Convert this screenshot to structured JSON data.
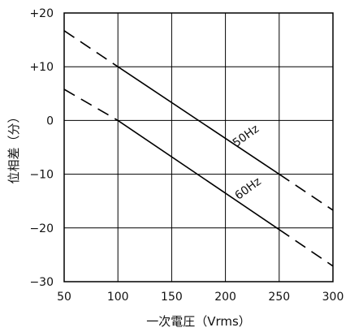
{
  "chart_data": {
    "type": "line",
    "xlabel": "一次電圧（Vrms）",
    "ylabel": "位相差（分）",
    "xlim": [
      50,
      300
    ],
    "ylim": [
      -30,
      20
    ],
    "x_ticks": [
      50,
      100,
      150,
      200,
      250,
      300
    ],
    "x_tick_labels": [
      "50",
      "100",
      "150",
      "200",
      "250",
      "300"
    ],
    "y_ticks": [
      20,
      10,
      0,
      -10,
      -20,
      -30
    ],
    "y_tick_labels": [
      "+20",
      "+10",
      "0",
      "−10",
      "−20",
      "−30"
    ],
    "grid": true,
    "series": [
      {
        "name": "50Hz",
        "solid": [
          [
            100,
            10
          ],
          [
            250,
            -10
          ]
        ],
        "dashed_segments": [
          [
            [
              50,
              16.7
            ],
            [
              100,
              10
            ]
          ],
          [
            [
              250,
              -10
            ],
            [
              300,
              -16.7
            ]
          ]
        ]
      },
      {
        "name": "60Hz",
        "solid": [
          [
            100,
            0
          ],
          [
            250,
            -20.3
          ]
        ],
        "dashed_segments": [
          [
            [
              50,
              5.8
            ],
            [
              100,
              0
            ]
          ],
          [
            [
              250,
              -20.3
            ],
            [
              300,
              -27.1
            ]
          ]
        ]
      }
    ],
    "series_labels": [
      {
        "text": "50Hz",
        "at": [
          210,
          -5.0
        ],
        "angle": -36
      },
      {
        "text": "60Hz",
        "at": [
          212,
          -14.8
        ],
        "angle": -36
      }
    ]
  }
}
